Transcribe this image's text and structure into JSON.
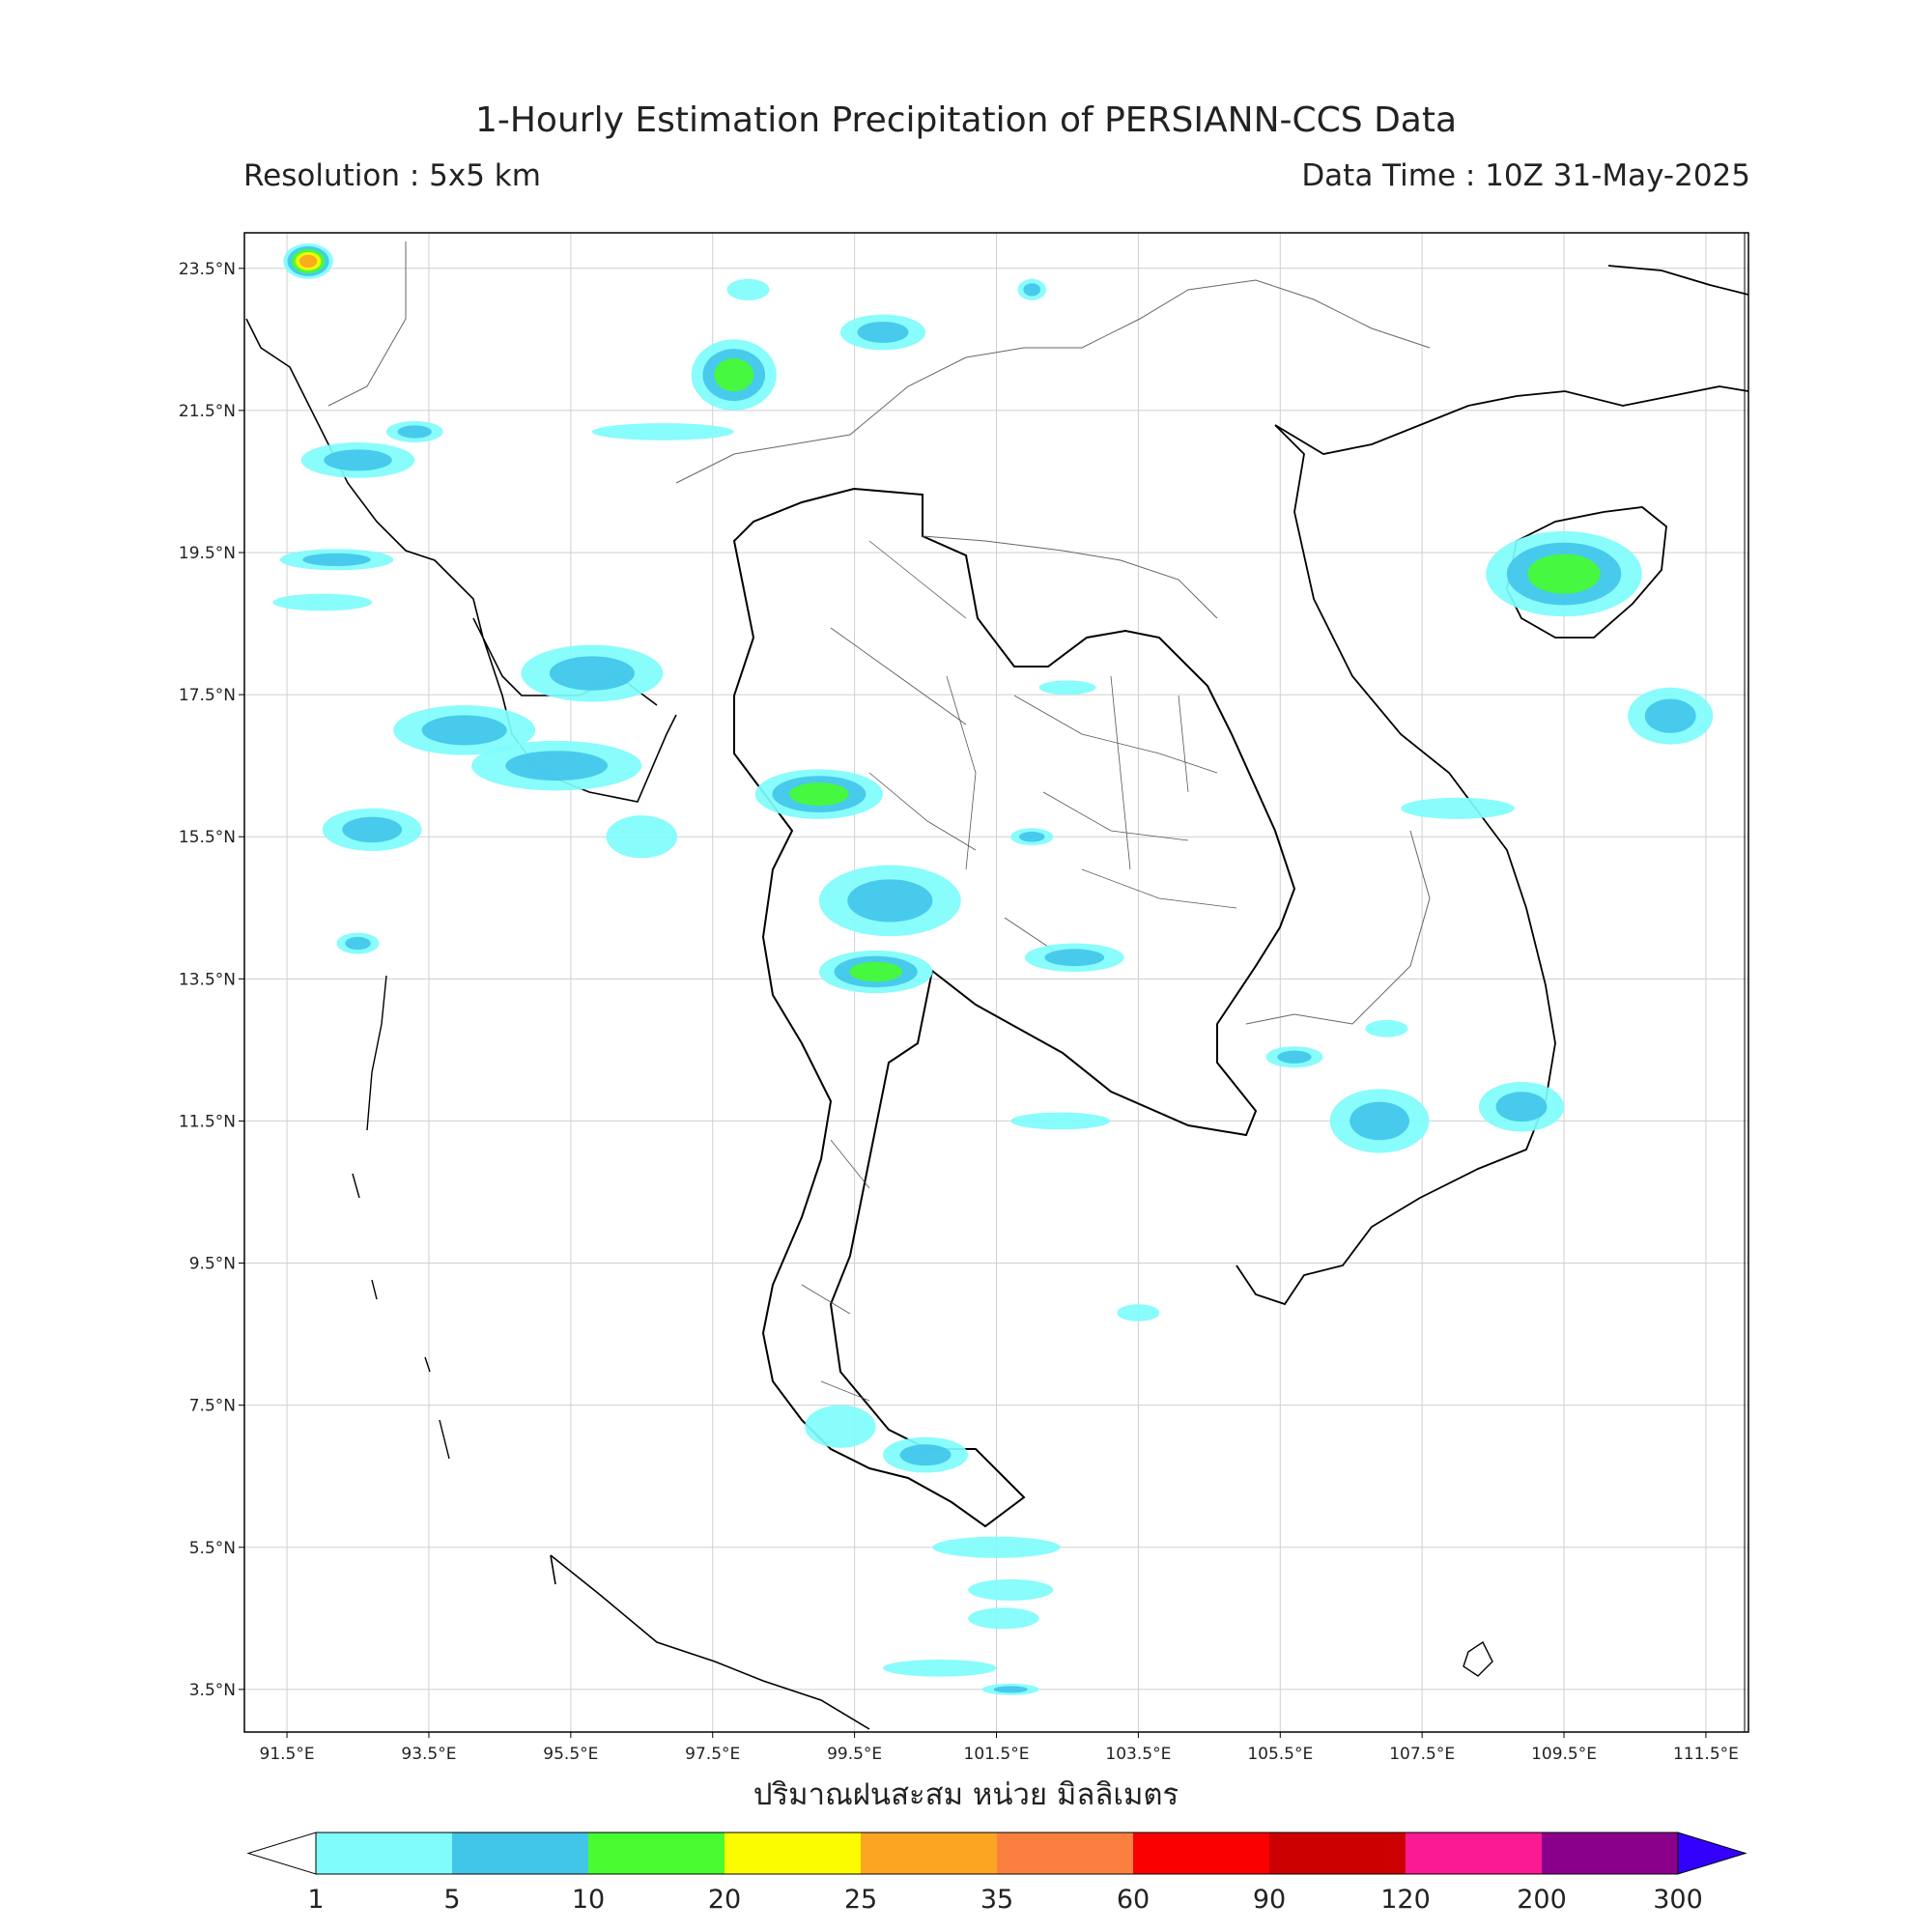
{
  "title": "1-Hourly Estimation Precipitation of PERSIANN-CCS Data",
  "resolution": "Resolution : 5x5 km",
  "data_time": "Data Time : 10Z 31-May-2025",
  "xlabel": "ปริมาณฝนสะสม หน่วย มิลลิเมตร",
  "map_extent": {
    "lon": [
      90.9,
      112.1
    ],
    "lat": [
      2.9,
      24.0
    ]
  },
  "lat_ticks": [
    {
      "value": 23.5,
      "label": "23.5°N"
    },
    {
      "value": 21.5,
      "label": "21.5°N"
    },
    {
      "value": 19.5,
      "label": "19.5°N"
    },
    {
      "value": 17.5,
      "label": "17.5°N"
    },
    {
      "value": 15.5,
      "label": "15.5°N"
    },
    {
      "value": 13.5,
      "label": "13.5°N"
    },
    {
      "value": 11.5,
      "label": "11.5°N"
    },
    {
      "value": 9.5,
      "label": "9.5°N"
    },
    {
      "value": 7.5,
      "label": "7.5°N"
    },
    {
      "value": 5.5,
      "label": "5.5°N"
    },
    {
      "value": 3.5,
      "label": "3.5°N"
    }
  ],
  "lon_ticks": [
    {
      "value": 91.5,
      "label": "91.5°E"
    },
    {
      "value": 93.5,
      "label": "93.5°E"
    },
    {
      "value": 95.5,
      "label": "95.5°E"
    },
    {
      "value": 97.5,
      "label": "97.5°E"
    },
    {
      "value": 99.5,
      "label": "99.5°E"
    },
    {
      "value": 101.5,
      "label": "101.5°E"
    },
    {
      "value": 103.5,
      "label": "103.5°E"
    },
    {
      "value": 105.5,
      "label": "105.5°E"
    },
    {
      "value": 107.5,
      "label": "107.5°E"
    },
    {
      "value": 109.5,
      "label": "109.5°E"
    },
    {
      "value": 111.5,
      "label": "111.5°E"
    }
  ],
  "colorbar": {
    "levels": [
      "1",
      "5",
      "10",
      "20",
      "25",
      "35",
      "60",
      "90",
      "120",
      "200",
      "300"
    ],
    "colors": [
      "#7ffcfc",
      "#41c6ea",
      "#48fc31",
      "#fcfc01",
      "#fba522",
      "#fb8040",
      "#fb0000",
      "#cc0000",
      "#fc1a92",
      "#8b008b"
    ],
    "under_color": "#ffffff",
    "over_color": "#3300ff"
  },
  "rain_cells": [
    {
      "lon": 91.8,
      "lat": 23.6,
      "rx": 0.35,
      "ry": 0.25,
      "level": 4
    },
    {
      "lon": 92.5,
      "lat": 20.8,
      "rx": 0.8,
      "ry": 0.25,
      "level": 1
    },
    {
      "lon": 92.2,
      "lat": 19.4,
      "rx": 0.8,
      "ry": 0.15,
      "level": 1
    },
    {
      "lon": 92.0,
      "lat": 18.8,
      "rx": 0.7,
      "ry": 0.12,
      "level": 0
    },
    {
      "lon": 94.0,
      "lat": 17.0,
      "rx": 1.0,
      "ry": 0.35,
      "level": 1
    },
    {
      "lon": 95.3,
      "lat": 16.5,
      "rx": 1.2,
      "ry": 0.35,
      "level": 1
    },
    {
      "lon": 95.8,
      "lat": 17.8,
      "rx": 1.0,
      "ry": 0.4,
      "level": 1
    },
    {
      "lon": 92.7,
      "lat": 15.6,
      "rx": 0.7,
      "ry": 0.3,
      "level": 1
    },
    {
      "lon": 92.5,
      "lat": 14.0,
      "rx": 0.3,
      "ry": 0.15,
      "level": 1
    },
    {
      "lon": 96.5,
      "lat": 15.5,
      "rx": 0.5,
      "ry": 0.3,
      "level": 0
    },
    {
      "lon": 97.8,
      "lat": 22.0,
      "rx": 0.6,
      "ry": 0.5,
      "level": 2
    },
    {
      "lon": 99.9,
      "lat": 22.6,
      "rx": 0.6,
      "ry": 0.25,
      "level": 1
    },
    {
      "lon": 102.0,
      "lat": 23.2,
      "rx": 0.2,
      "ry": 0.15,
      "level": 1
    },
    {
      "lon": 99.0,
      "lat": 16.1,
      "rx": 0.9,
      "ry": 0.35,
      "level": 2
    },
    {
      "lon": 100.0,
      "lat": 14.6,
      "rx": 1.0,
      "ry": 0.5,
      "level": 1
    },
    {
      "lon": 99.8,
      "lat": 13.6,
      "rx": 0.8,
      "ry": 0.3,
      "level": 2
    },
    {
      "lon": 102.6,
      "lat": 13.8,
      "rx": 0.7,
      "ry": 0.2,
      "level": 1
    },
    {
      "lon": 102.0,
      "lat": 15.5,
      "rx": 0.3,
      "ry": 0.12,
      "level": 1
    },
    {
      "lon": 102.5,
      "lat": 17.6,
      "rx": 0.4,
      "ry": 0.1,
      "level": 0
    },
    {
      "lon": 109.5,
      "lat": 19.2,
      "rx": 1.1,
      "ry": 0.6,
      "level": 2
    },
    {
      "lon": 111.0,
      "lat": 17.2,
      "rx": 0.6,
      "ry": 0.4,
      "level": 1
    },
    {
      "lon": 108.0,
      "lat": 15.9,
      "rx": 0.8,
      "ry": 0.15,
      "level": 0
    },
    {
      "lon": 108.9,
      "lat": 11.7,
      "rx": 0.6,
      "ry": 0.35,
      "level": 1
    },
    {
      "lon": 106.9,
      "lat": 11.5,
      "rx": 0.7,
      "ry": 0.45,
      "level": 1
    },
    {
      "lon": 105.7,
      "lat": 12.4,
      "rx": 0.4,
      "ry": 0.15,
      "level": 1
    },
    {
      "lon": 107.0,
      "lat": 12.8,
      "rx": 0.3,
      "ry": 0.12,
      "level": 0
    },
    {
      "lon": 102.4,
      "lat": 11.5,
      "rx": 0.7,
      "ry": 0.12,
      "level": 0
    },
    {
      "lon": 103.5,
      "lat": 8.8,
      "rx": 0.3,
      "ry": 0.12,
      "level": 0
    },
    {
      "lon": 99.3,
      "lat": 7.2,
      "rx": 0.5,
      "ry": 0.3,
      "level": 0
    },
    {
      "lon": 100.5,
      "lat": 6.8,
      "rx": 0.6,
      "ry": 0.25,
      "level": 1
    },
    {
      "lon": 101.5,
      "lat": 5.5,
      "rx": 0.9,
      "ry": 0.15,
      "level": 0
    },
    {
      "lon": 101.7,
      "lat": 4.9,
      "rx": 0.6,
      "ry": 0.15,
      "level": 0
    },
    {
      "lon": 101.6,
      "lat": 4.5,
      "rx": 0.5,
      "ry": 0.15,
      "level": 0
    },
    {
      "lon": 100.7,
      "lat": 3.8,
      "rx": 0.8,
      "ry": 0.12,
      "level": 0
    },
    {
      "lon": 101.7,
      "lat": 3.5,
      "rx": 0.4,
      "ry": 0.08,
      "level": 1
    },
    {
      "lon": 96.8,
      "lat": 21.2,
      "rx": 1.0,
      "ry": 0.12,
      "level": 0
    },
    {
      "lon": 93.3,
      "lat": 21.2,
      "rx": 0.4,
      "ry": 0.15,
      "level": 1
    },
    {
      "lon": 98.0,
      "lat": 23.2,
      "rx": 0.3,
      "ry": 0.15,
      "level": 0
    }
  ]
}
